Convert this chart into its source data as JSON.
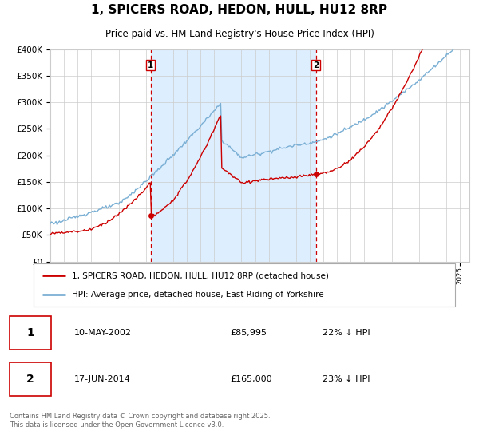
{
  "title": "1, SPICERS ROAD, HEDON, HULL, HU12 8RP",
  "subtitle": "Price paid vs. HM Land Registry's House Price Index (HPI)",
  "legend_line1": "1, SPICERS ROAD, HEDON, HULL, HU12 8RP (detached house)",
  "legend_line2": "HPI: Average price, detached house, East Riding of Yorkshire",
  "annotation1_date": "10-MAY-2002",
  "annotation1_price": "£85,995",
  "annotation1_hpi": "22% ↓ HPI",
  "annotation2_date": "17-JUN-2014",
  "annotation2_price": "£165,000",
  "annotation2_hpi": "23% ↓ HPI",
  "footer": "Contains HM Land Registry data © Crown copyright and database right 2025.\nThis data is licensed under the Open Government Licence v3.0.",
  "red_color": "#cc0000",
  "blue_color": "#7aafd4",
  "bg_color": "#ddeeff",
  "plot_bg": "#ffffff",
  "grid_color": "#cccccc",
  "ylim": [
    0,
    400000
  ],
  "purchase1_year": 2002.36,
  "purchase1_value": 85995,
  "purchase2_year": 2014.46,
  "purchase2_value": 165000
}
